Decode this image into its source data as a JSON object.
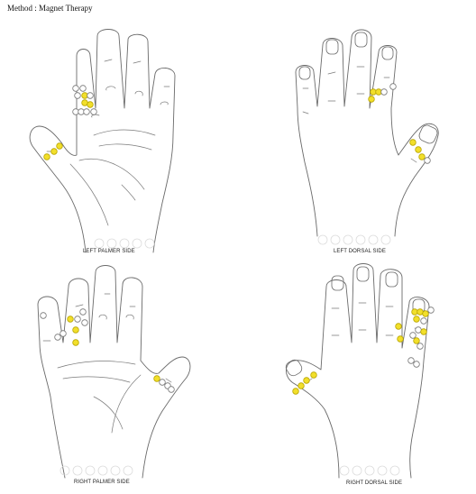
{
  "header": {
    "title": "Method : Magnet Therapy"
  },
  "colors": {
    "marker_active": "#f2df2a",
    "marker_active_stroke": "#b8a500",
    "marker_empty": "#ffffff",
    "marker_stroke": "#777777",
    "outline": "#6a6a6a"
  },
  "panels": [
    {
      "id": "left-palmer",
      "caption": "LEFT PALMER SIDE"
    },
    {
      "id": "left-dorsal",
      "caption": "LEFT DORSAL SIDE"
    },
    {
      "id": "right-palmer",
      "caption": "RIGHT PALMER SIDE"
    },
    {
      "id": "right-dorsal",
      "caption": "RIGHT DORSAL SIDE"
    }
  ]
}
